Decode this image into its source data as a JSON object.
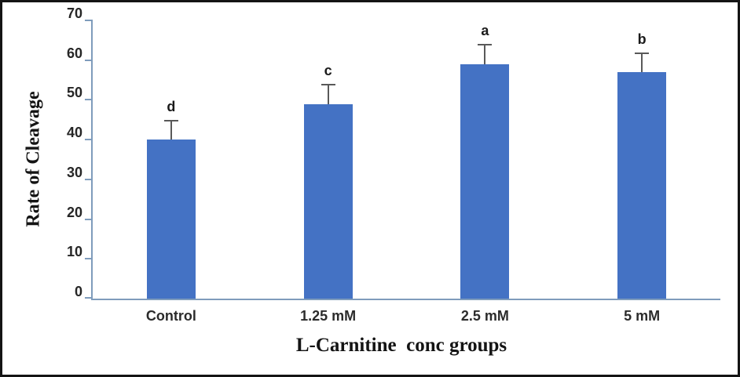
{
  "frame": {
    "background": "#ffffff",
    "border_color": "#141414"
  },
  "chart_data": {
    "type": "bar",
    "title": "",
    "xlabel": "L-Carnitine  conc groups",
    "ylabel": "Rate of Cleavage",
    "categories": [
      "Control",
      "1.25 mM",
      "2.5 mM",
      "5 mM"
    ],
    "values": [
      40,
      49,
      59,
      57
    ],
    "error_values": [
      5,
      5,
      5,
      5
    ],
    "significance_letters": [
      "d",
      "c",
      "a",
      "b"
    ],
    "ylim": [
      0,
      70
    ],
    "yticks": [
      0,
      10,
      20,
      30,
      40,
      50,
      60,
      70
    ],
    "grid": false,
    "legend": "none",
    "bar_color": "#4472c4",
    "axis_color": "#7f9cbc",
    "error_bar_color": "#595959",
    "tick_label_color": "#262626"
  }
}
